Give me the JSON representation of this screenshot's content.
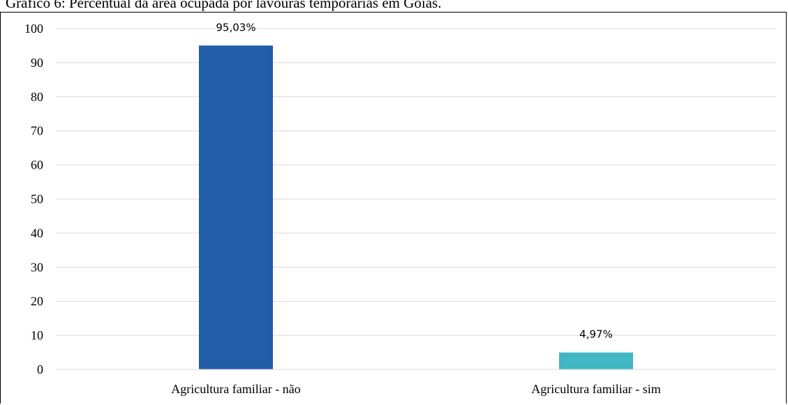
{
  "title": "Gráfico 6: Percentual da área ocupada por lavouras temporárias em Goiás.",
  "chart_data": {
    "type": "bar",
    "categories": [
      "Agricultura familiar - não",
      "Agricultura familiar - sim"
    ],
    "values": [
      95.03,
      4.97
    ],
    "data_labels": [
      "95,03%",
      "4,97%"
    ],
    "colors": [
      "#225EA8",
      "#41B6C4"
    ],
    "ylim": [
      0,
      100
    ],
    "yticks": [
      0,
      10,
      20,
      30,
      40,
      50,
      60,
      70,
      80,
      90,
      100
    ],
    "grid": true,
    "gridColor": "#d9d9d9",
    "xlabel": "",
    "ylabel": ""
  }
}
